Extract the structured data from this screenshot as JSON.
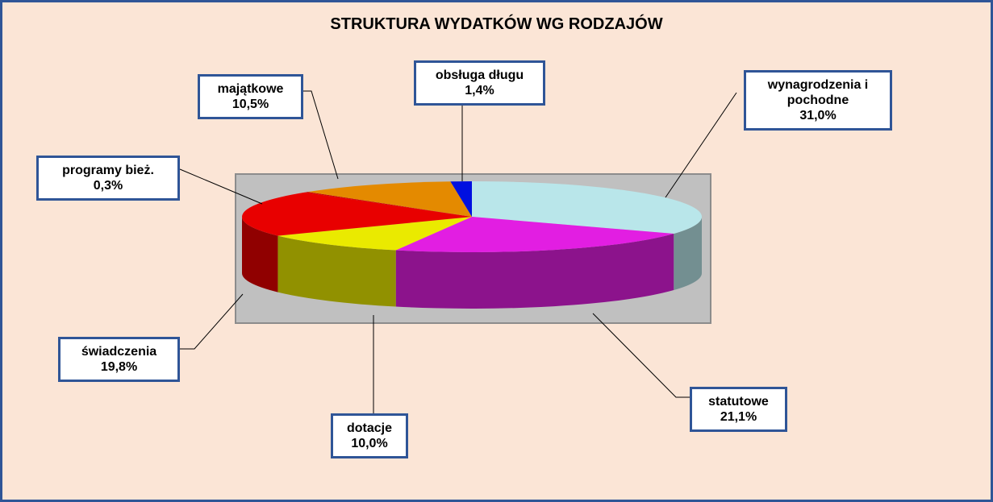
{
  "chart_data": {
    "type": "pie3d",
    "title": "STRUKTURA WYDATKÓW WG RODZAJÓW",
    "categories": [
      "wynagrodzenia i pochodne",
      "statutowe",
      "dotacje",
      "świadczenia",
      "programy bież.",
      "majątkowe",
      "obsługa długu"
    ],
    "values": [
      31.0,
      21.1,
      10.0,
      19.8,
      0.3,
      10.5,
      1.4
    ],
    "value_labels": [
      "31,0%",
      "21,1%",
      "10,0%",
      "19,8%",
      "0,3%",
      "10,5%",
      "1,4%"
    ],
    "colors": [
      "#b9e6ea",
      "#e21ee2",
      "#eaea00",
      "#e80000",
      "#c80000",
      "#e48a00",
      "#0010e0"
    ]
  }
}
